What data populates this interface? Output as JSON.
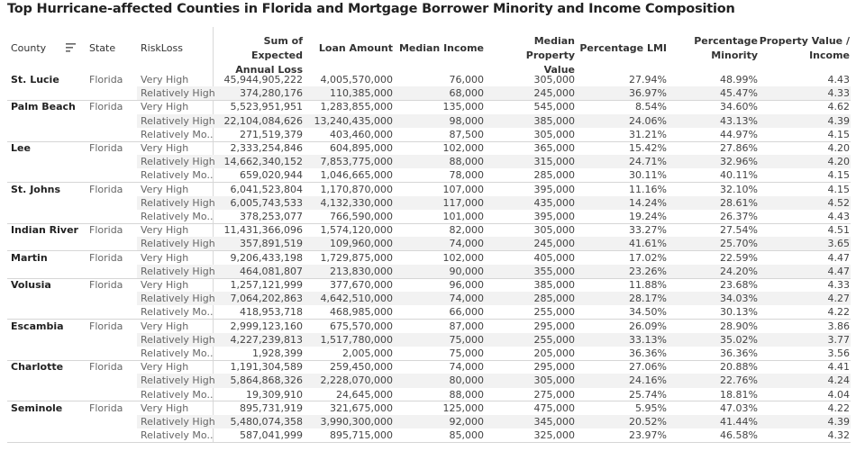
{
  "title": "Top Hurricane-affected Counties in Florida and Mortgage Borrower Minority and Income Composition",
  "columns": {
    "county": "County",
    "state": "State",
    "risk": "RiskLoss",
    "eal": [
      "Sum of Expected",
      "Annual Loss"
    ],
    "loan": [
      "Loan Amount"
    ],
    "income": [
      "Median Income"
    ],
    "property": [
      "Median Property",
      "Value"
    ],
    "lmi": [
      "Percentage LMI"
    ],
    "minority": [
      "Percentage",
      "Minority"
    ],
    "pvi": [
      "Property Value /",
      "Income"
    ]
  },
  "icons": {
    "sort": "sort-descending-icon"
  },
  "chart_data": {
    "type": "table",
    "title": "Top Hurricane-affected Counties in Florida and Mortgage Borrower Minority and Income Composition",
    "groups": [
      {
        "county": "St. Lucie",
        "state": "Florida",
        "rows": [
          [
            "Very High",
            "45,944,905,222",
            "4,005,570,000",
            "76,000",
            "305,000",
            "27.94%",
            "48.99%",
            "4.43"
          ],
          [
            "Relatively High",
            "374,280,176",
            "110,385,000",
            "68,000",
            "245,000",
            "36.97%",
            "45.47%",
            "4.33"
          ]
        ]
      },
      {
        "county": "Palm Beach",
        "state": "Florida",
        "rows": [
          [
            "Very High",
            "5,523,951,951",
            "1,283,855,000",
            "135,000",
            "545,000",
            "8.54%",
            "34.60%",
            "4.62"
          ],
          [
            "Relatively High",
            "22,104,084,626",
            "13,240,435,000",
            "98,000",
            "385,000",
            "24.06%",
            "43.13%",
            "4.39"
          ],
          [
            "Relatively Mo..",
            "271,519,379",
            "403,460,000",
            "87,500",
            "305,000",
            "31.21%",
            "44.97%",
            "4.15"
          ]
        ]
      },
      {
        "county": "Lee",
        "state": "Florida",
        "rows": [
          [
            "Very High",
            "2,333,254,846",
            "604,895,000",
            "102,000",
            "365,000",
            "15.42%",
            "27.86%",
            "4.20"
          ],
          [
            "Relatively High",
            "14,662,340,152",
            "7,853,775,000",
            "88,000",
            "315,000",
            "24.71%",
            "32.96%",
            "4.20"
          ],
          [
            "Relatively Mo..",
            "659,020,944",
            "1,046,665,000",
            "78,000",
            "285,000",
            "30.11%",
            "40.11%",
            "4.15"
          ]
        ]
      },
      {
        "county": "St. Johns",
        "state": "Florida",
        "rows": [
          [
            "Very High",
            "6,041,523,804",
            "1,170,870,000",
            "107,000",
            "395,000",
            "11.16%",
            "32.10%",
            "4.15"
          ],
          [
            "Relatively High",
            "6,005,743,533",
            "4,132,330,000",
            "117,000",
            "435,000",
            "14.24%",
            "28.61%",
            "4.52"
          ],
          [
            "Relatively Mo..",
            "378,253,077",
            "766,590,000",
            "101,000",
            "395,000",
            "19.24%",
            "26.37%",
            "4.43"
          ]
        ]
      },
      {
        "county": "Indian River",
        "state": "Florida",
        "rows": [
          [
            "Very High",
            "11,431,366,096",
            "1,574,120,000",
            "82,000",
            "305,000",
            "33.27%",
            "27.54%",
            "4.51"
          ],
          [
            "Relatively High",
            "357,891,519",
            "109,960,000",
            "74,000",
            "245,000",
            "41.61%",
            "25.70%",
            "3.65"
          ]
        ]
      },
      {
        "county": "Martin",
        "state": "Florida",
        "rows": [
          [
            "Very High",
            "9,206,433,198",
            "1,729,875,000",
            "102,000",
            "405,000",
            "17.02%",
            "22.59%",
            "4.47"
          ],
          [
            "Relatively High",
            "464,081,807",
            "213,830,000",
            "90,000",
            "355,000",
            "23.26%",
            "24.20%",
            "4.47"
          ]
        ]
      },
      {
        "county": "Volusia",
        "state": "Florida",
        "rows": [
          [
            "Very High",
            "1,257,121,999",
            "377,670,000",
            "96,000",
            "385,000",
            "11.88%",
            "23.68%",
            "4.33"
          ],
          [
            "Relatively High",
            "7,064,202,863",
            "4,642,510,000",
            "74,000",
            "285,000",
            "28.17%",
            "34.03%",
            "4.27"
          ],
          [
            "Relatively Mo..",
            "418,953,718",
            "468,985,000",
            "66,000",
            "255,000",
            "34.50%",
            "30.13%",
            "4.22"
          ]
        ]
      },
      {
        "county": "Escambia",
        "state": "Florida",
        "rows": [
          [
            "Very High",
            "2,999,123,160",
            "675,570,000",
            "87,000",
            "295,000",
            "26.09%",
            "28.90%",
            "3.86"
          ],
          [
            "Relatively High",
            "4,227,239,813",
            "1,517,780,000",
            "75,000",
            "255,000",
            "33.13%",
            "35.02%",
            "3.77"
          ],
          [
            "Relatively Mo..",
            "1,928,399",
            "2,005,000",
            "75,000",
            "205,000",
            "36.36%",
            "36.36%",
            "3.56"
          ]
        ]
      },
      {
        "county": "Charlotte",
        "state": "Florida",
        "rows": [
          [
            "Very High",
            "1,191,304,589",
            "259,450,000",
            "74,000",
            "295,000",
            "27.06%",
            "20.88%",
            "4.41"
          ],
          [
            "Relatively High",
            "5,864,868,326",
            "2,228,070,000",
            "80,000",
            "305,000",
            "24.16%",
            "22.76%",
            "4.24"
          ],
          [
            "Relatively Mo..",
            "19,309,910",
            "24,645,000",
            "88,000",
            "275,000",
            "25.74%",
            "18.81%",
            "4.04"
          ]
        ]
      },
      {
        "county": "Seminole",
        "state": "Florida",
        "rows": [
          [
            "Very High",
            "895,731,919",
            "321,675,000",
            "125,000",
            "475,000",
            "5.95%",
            "47.03%",
            "4.22"
          ],
          [
            "Relatively High",
            "5,480,074,358",
            "3,990,300,000",
            "92,000",
            "345,000",
            "20.52%",
            "41.44%",
            "4.39"
          ],
          [
            "Relatively Mo..",
            "587,041,999",
            "895,715,000",
            "85,000",
            "325,000",
            "23.97%",
            "46.58%",
            "4.32"
          ]
        ]
      }
    ]
  }
}
